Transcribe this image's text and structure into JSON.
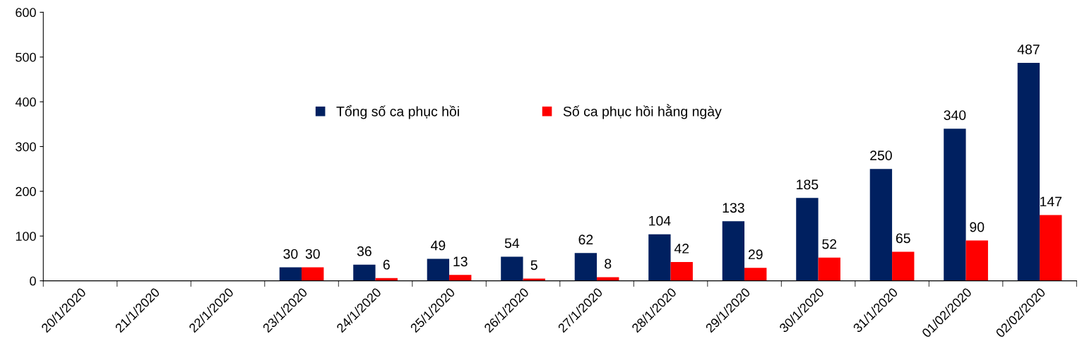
{
  "chart_data": {
    "type": "bar",
    "categories": [
      "20/1/2020",
      "21/1/2020",
      "22/1/2020",
      "23/1/2020",
      "24/1/2020",
      "25/1/2020",
      "26/1/2020",
      "27/1/2020",
      "28/1/2020",
      "29/1/2020",
      "30/1/2020",
      "31/1/2020",
      "01/02/2020",
      "02/02/2020"
    ],
    "series": [
      {
        "name": "Tổng số ca phục hồi",
        "color": "#002060",
        "values": [
          null,
          null,
          null,
          30,
          36,
          49,
          54,
          62,
          104,
          133,
          185,
          250,
          340,
          487
        ]
      },
      {
        "name": "Số ca phục hồi hằng ngày",
        "color": "#ff0000",
        "values": [
          null,
          null,
          null,
          30,
          6,
          13,
          5,
          8,
          42,
          29,
          52,
          65,
          90,
          147
        ]
      }
    ],
    "ylim": [
      0,
      600
    ],
    "yticks": [
      0,
      100,
      200,
      300,
      400,
      500,
      600
    ],
    "data_labels": true,
    "grid": false,
    "legend": "center"
  }
}
